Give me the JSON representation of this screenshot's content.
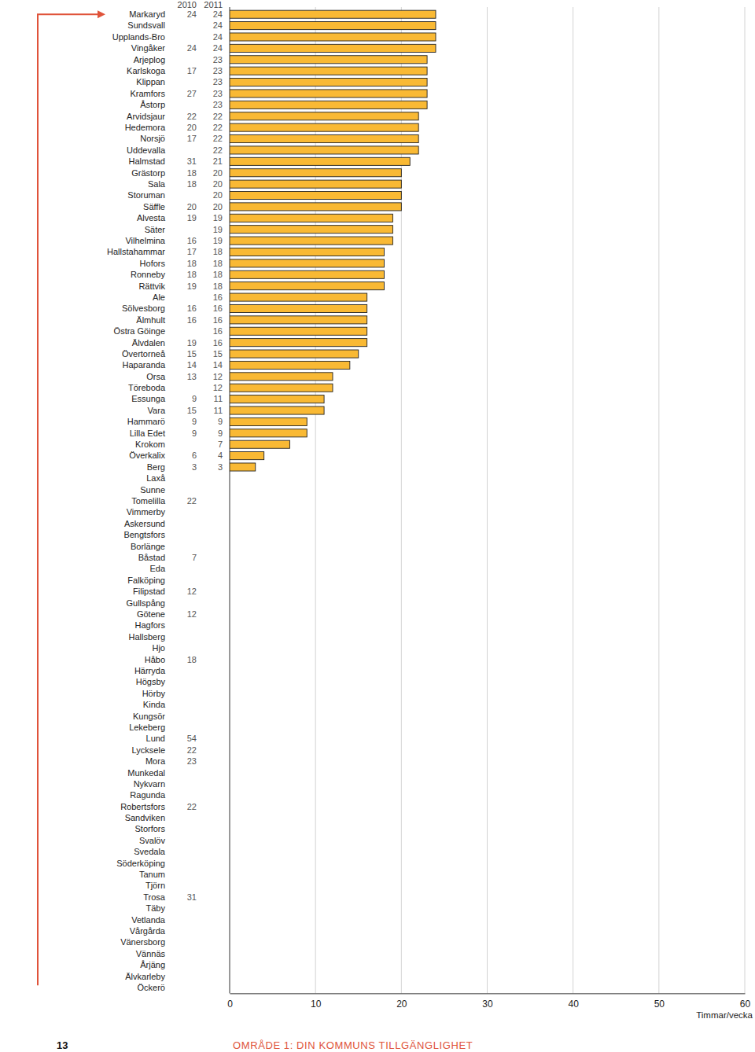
{
  "chart_data": {
    "type": "bar",
    "orientation": "horizontal",
    "grid": true,
    "data_labels": true,
    "x_label": "Timmar/vecka",
    "xlim": [
      0,
      60
    ],
    "xticks": [
      0,
      10,
      20,
      30,
      40,
      50,
      60
    ],
    "categories": [
      "Markaryd",
      "Sundsvall",
      "Upplands-Bro",
      "Vingåker",
      "Arjeplog",
      "Karlskoga",
      "Klippan",
      "Kramfors",
      "Åstorp",
      "Arvidsjaur",
      "Hedemora",
      "Norsjö",
      "Uddevalla",
      "Halmstad",
      "Grästorp",
      "Sala",
      "Storuman",
      "Säffle",
      "Alvesta",
      "Säter",
      "Vilhelmina",
      "Hallstahammar",
      "Hofors",
      "Ronneby",
      "Rättvik",
      "Ale",
      "Sölvesborg",
      "Älmhult",
      "Östra Göinge",
      "Älvdalen",
      "Övertorneå",
      "Haparanda",
      "Orsa",
      "Töreboda",
      "Essunga",
      "Vara",
      "Hammarö",
      "Lilla Edet",
      "Krokom",
      "Överkalix",
      "Berg",
      "Laxå",
      "Sunne",
      "Tomelilla",
      "Vimmerby",
      "Askersund",
      "Bengtsfors",
      "Borlänge",
      "Båstad",
      "Eda",
      "Falköping",
      "Filipstad",
      "Gullspång",
      "Götene",
      "Hagfors",
      "Hallsberg",
      "Hjo",
      "Håbo",
      "Härryda",
      "Högsby",
      "Hörby",
      "Kinda",
      "Kungsör",
      "Lekeberg",
      "Lund",
      "Lycksele",
      "Mora",
      "Munkedal",
      "Nykvarn",
      "Ragunda",
      "Robertsfors",
      "Sandviken",
      "Storfors",
      "Svalöv",
      "Svedala",
      "Söderköping",
      "Tanum",
      "Tjörn",
      "Trosa",
      "Täby",
      "Vetlanda",
      "Vårgårda",
      "Vänersborg",
      "Vännäs",
      "Årjäng",
      "Älvkarleby",
      "Öckerö"
    ],
    "series": [
      {
        "name": "2010",
        "type": "text",
        "values": [
          24,
          null,
          null,
          24,
          null,
          17,
          null,
          27,
          null,
          22,
          20,
          17,
          null,
          31,
          18,
          18,
          null,
          20,
          19,
          null,
          16,
          17,
          18,
          18,
          19,
          null,
          16,
          16,
          null,
          19,
          15,
          14,
          13,
          null,
          9,
          15,
          9,
          9,
          null,
          6,
          3,
          null,
          null,
          22,
          null,
          null,
          null,
          null,
          7,
          null,
          null,
          12,
          null,
          12,
          null,
          null,
          null,
          18,
          null,
          null,
          null,
          null,
          null,
          null,
          54,
          22,
          23,
          null,
          null,
          null,
          22,
          null,
          null,
          null,
          null,
          null,
          null,
          null,
          31,
          null,
          null,
          null,
          null,
          null,
          null,
          null,
          null
        ]
      },
      {
        "name": "2011",
        "type": "bar",
        "color": "#f9b934",
        "values": [
          24,
          24,
          24,
          24,
          23,
          23,
          23,
          23,
          23,
          22,
          22,
          22,
          22,
          21,
          20,
          20,
          20,
          20,
          19,
          19,
          19,
          18,
          18,
          18,
          18,
          16,
          16,
          16,
          16,
          16,
          15,
          14,
          12,
          12,
          11,
          11,
          9,
          9,
          7,
          4,
          3,
          null,
          null,
          null,
          null,
          null,
          null,
          null,
          null,
          null,
          null,
          null,
          null,
          null,
          null,
          null,
          null,
          null,
          null,
          null,
          null,
          null,
          null,
          null,
          null,
          null,
          null,
          null,
          null,
          null,
          null,
          null,
          null,
          null,
          null,
          null,
          null,
          null,
          null,
          null,
          null,
          null,
          null,
          null,
          null,
          null,
          null
        ]
      }
    ]
  },
  "page": {
    "number": "13",
    "footer": "OMRÅDE 1: DIN KOMMUNS TILLGÄNGLIGHET"
  }
}
